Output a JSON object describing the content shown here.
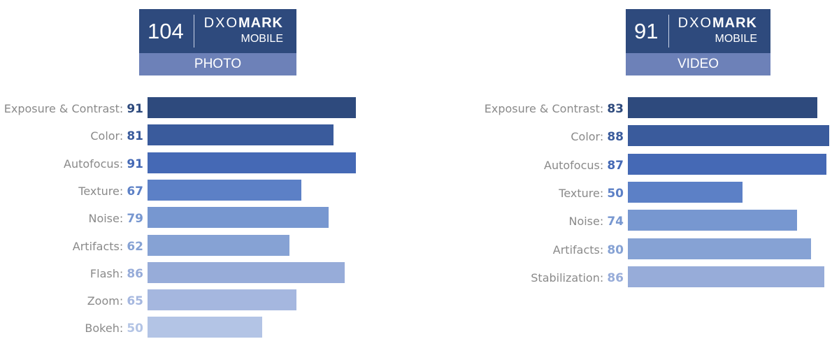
{
  "photo_badge": {
    "score": "104",
    "brand_light": "DXO",
    "brand_bold": "MARK",
    "sub": "MOBILE",
    "category": "PHOTO"
  },
  "video_badge": {
    "score": "91",
    "brand_light": "DXO",
    "brand_bold": "MARK",
    "sub": "MOBILE",
    "category": "VIDEO"
  },
  "colors": [
    "#2e4a7d",
    "#3a5b9c",
    "#4569b5",
    "#5c80c6",
    "#7797d0",
    "#86a2d4",
    "#97acd9",
    "#a5b7df",
    "#b3c4e5"
  ],
  "photo": [
    {
      "label": "Exposure & Contrast:",
      "value": "91"
    },
    {
      "label": "Color:",
      "value": "81"
    },
    {
      "label": "Autofocus:",
      "value": "91"
    },
    {
      "label": "Texture:",
      "value": "67"
    },
    {
      "label": "Noise:",
      "value": "79"
    },
    {
      "label": "Artifacts:",
      "value": "62"
    },
    {
      "label": "Flash:",
      "value": "86"
    },
    {
      "label": "Zoom:",
      "value": "65"
    },
    {
      "label": "Bokeh:",
      "value": "50"
    }
  ],
  "video": [
    {
      "label": "Exposure & Contrast:",
      "value": "83"
    },
    {
      "label": "Color:",
      "value": "88"
    },
    {
      "label": "Autofocus:",
      "value": "87"
    },
    {
      "label": "Texture:",
      "value": "50"
    },
    {
      "label": "Noise:",
      "value": "74"
    },
    {
      "label": "Artifacts:",
      "value": "80"
    },
    {
      "label": "Stabilization:",
      "value": "86"
    }
  ],
  "chart_data": [
    {
      "type": "bar",
      "title": "DXOMARK MOBILE PHOTO 104",
      "categories": [
        "Exposure & Contrast",
        "Color",
        "Autofocus",
        "Texture",
        "Noise",
        "Artifacts",
        "Flash",
        "Zoom",
        "Bokeh"
      ],
      "values": [
        91,
        81,
        91,
        67,
        79,
        62,
        86,
        65,
        50
      ],
      "orientation": "horizontal",
      "xlabel": "",
      "ylabel": "",
      "grid": false
    },
    {
      "type": "bar",
      "title": "DXOMARK MOBILE VIDEO 91",
      "categories": [
        "Exposure & Contrast",
        "Color",
        "Autofocus",
        "Texture",
        "Noise",
        "Artifacts",
        "Stabilization"
      ],
      "values": [
        83,
        88,
        87,
        50,
        74,
        80,
        86
      ],
      "orientation": "horizontal",
      "xlabel": "",
      "ylabel": "",
      "grid": false
    }
  ]
}
